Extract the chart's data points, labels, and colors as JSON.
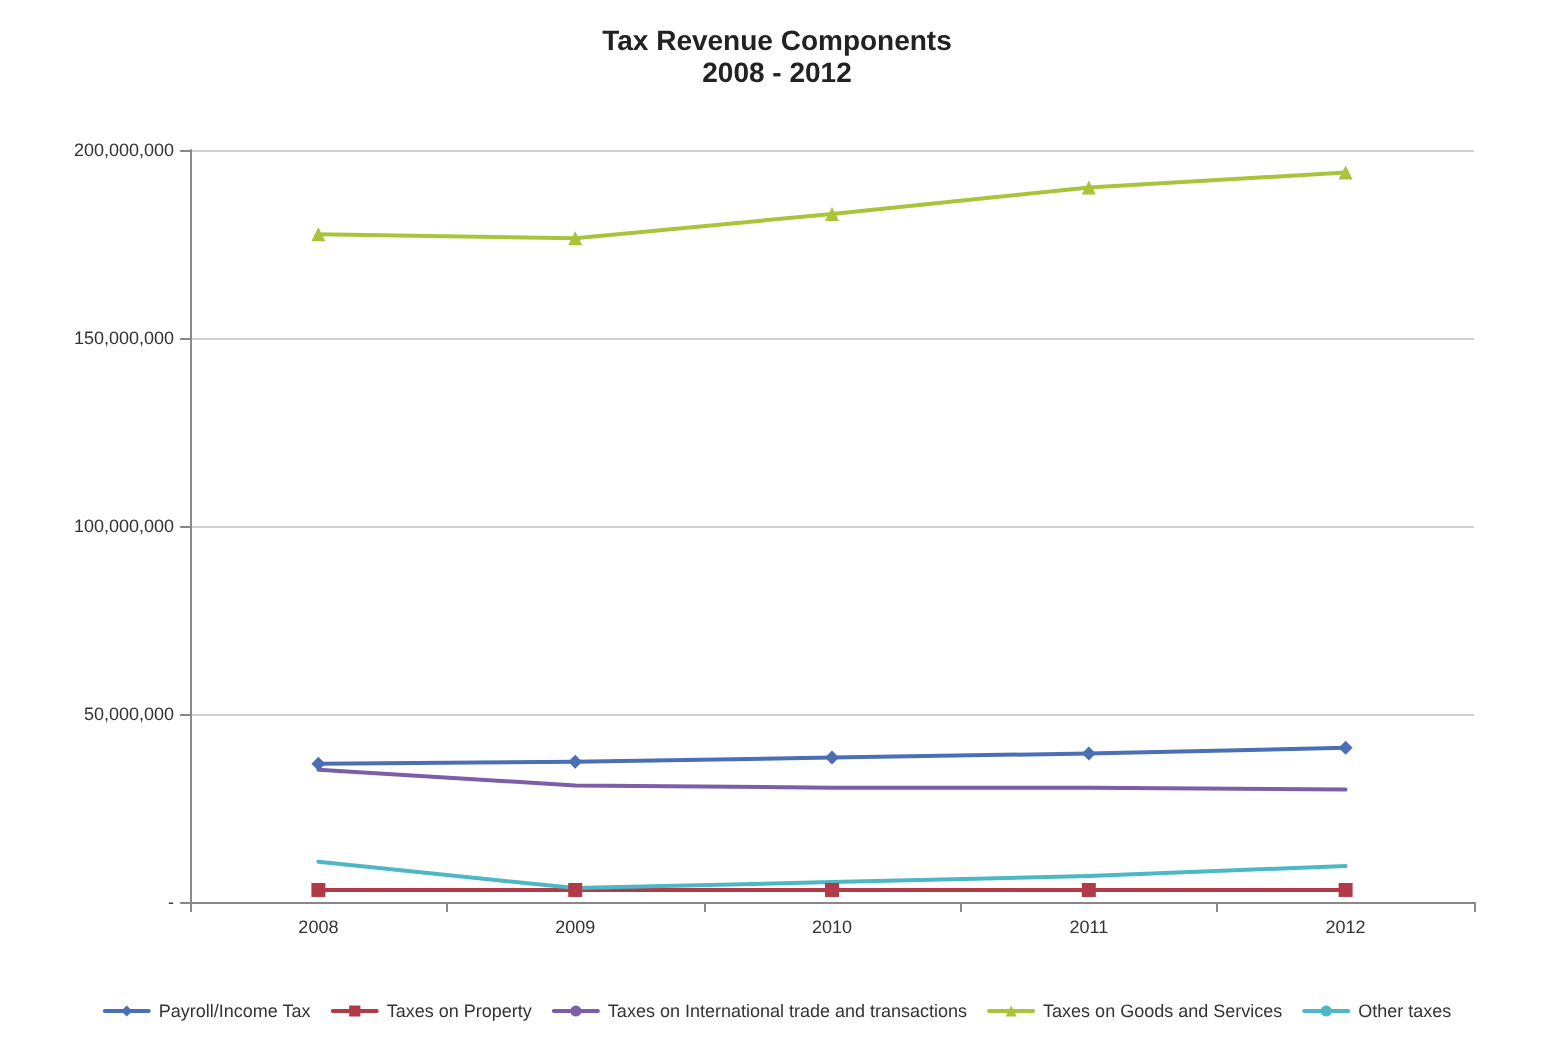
{
  "chart_data": {
    "type": "line",
    "title": "Tax Revenue Components",
    "subtitle": "2008 - 2012",
    "categories": [
      "2008",
      "2009",
      "2010",
      "2011",
      "2012"
    ],
    "series": [
      {
        "name": "Payroll/Income Tax",
        "color": "#4a6fb5",
        "marker": "diamond",
        "values": [
          36800000,
          37300000,
          38400000,
          39500000,
          41000000
        ]
      },
      {
        "name": "Taxes on Property",
        "color": "#b03a48",
        "marker": "square",
        "values": [
          3200000,
          3200000,
          3200000,
          3200000,
          3200000
        ]
      },
      {
        "name": "Taxes on International trade and transactions",
        "color": "#7b5ea7",
        "marker": "none",
        "values": [
          35200000,
          31000000,
          30400000,
          30400000,
          29900000
        ]
      },
      {
        "name": "Taxes on Goods and Services",
        "color": "#a9c43a",
        "marker": "triangle",
        "values": [
          177600000,
          176500000,
          183000000,
          190000000,
          194000000
        ]
      },
      {
        "name": "Other taxes",
        "color": "#4bb8c4",
        "marker": "none",
        "values": [
          10700000,
          3700000,
          5300000,
          6900000,
          9600000
        ]
      }
    ],
    "ylim": [
      0,
      200000000
    ],
    "yticks": [
      {
        "value": 0,
        "label": "-"
      },
      {
        "value": 50000000,
        "label": "50,000,000"
      },
      {
        "value": 100000000,
        "label": "100,000,000"
      },
      {
        "value": 150000000,
        "label": "150,000,000"
      },
      {
        "value": 200000000,
        "label": "200,000,000"
      }
    ],
    "grid": "y",
    "legend": "bottom"
  }
}
